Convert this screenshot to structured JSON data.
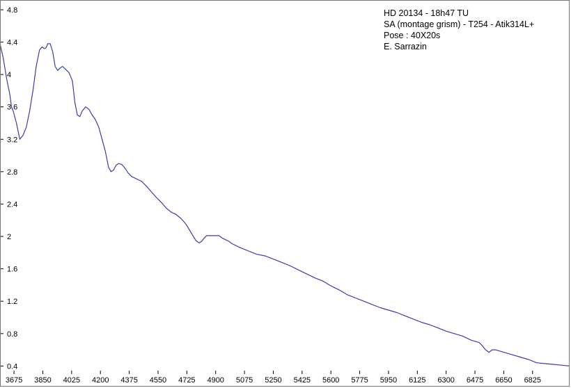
{
  "chart_data": {
    "type": "line",
    "title": "",
    "xlabel": "",
    "ylabel": "",
    "xlim": [
      3590,
      7050
    ],
    "ylim": [
      0.3,
      4.92
    ],
    "grid": false,
    "legend": "none",
    "x_ticks": [
      3675,
      3850,
      4025,
      4200,
      4375,
      4550,
      4725,
      4900,
      5075,
      5250,
      5425,
      5600,
      5775,
      5950,
      6125,
      6300,
      6475,
      6650,
      6825
    ],
    "y_ticks": [
      0.4,
      0.8,
      1.2,
      1.6,
      2,
      2.4,
      2.8,
      3.2,
      3.6,
      4,
      4.4,
      4.8
    ],
    "y_tick_labels": [
      "0.4",
      "0.8",
      "1.2",
      "1.6",
      "2",
      "2.4",
      "2.8",
      "3.2",
      "3.6",
      "4",
      "4.4",
      "4.8"
    ],
    "annotation": [
      "HD 20134 - 18h47 TU",
      "SA (montage grism) - T254 - Atik314L+",
      "Pose : 40X20s",
      "E. Sarrazin"
    ],
    "series": [
      {
        "color": "#3a3f9a",
        "x": [
          3590,
          3610,
          3630,
          3650,
          3660,
          3670,
          3690,
          3710,
          3730,
          3750,
          3770,
          3790,
          3810,
          3830,
          3845,
          3860,
          3870,
          3880,
          3895,
          3910,
          3925,
          3940,
          3955,
          3970,
          3990,
          4010,
          4030,
          4045,
          4060,
          4075,
          4090,
          4110,
          4130,
          4150,
          4170,
          4190,
          4210,
          4230,
          4250,
          4265,
          4280,
          4295,
          4310,
          4330,
          4350,
          4370,
          4390,
          4410,
          4430,
          4450,
          4480,
          4510,
          4540,
          4570,
          4600,
          4630,
          4660,
          4690,
          4720,
          4750,
          4780,
          4800,
          4815,
          4830,
          4845,
          4860,
          4880,
          4900,
          4920,
          4940,
          4960,
          4980,
          5000,
          5050,
          5100,
          5150,
          5200,
          5250,
          5300,
          5350,
          5400,
          5450,
          5500,
          5550,
          5600,
          5650,
          5700,
          5750,
          5800,
          5850,
          5900,
          5950,
          6000,
          6050,
          6100,
          6150,
          6200,
          6250,
          6300,
          6350,
          6400,
          6450,
          6500,
          6520,
          6540,
          6560,
          6580,
          6600,
          6650,
          6700,
          6750,
          6800,
          6850,
          6900,
          6950,
          7000,
          7050
        ],
        "y": [
          4.38,
          4.2,
          3.95,
          3.75,
          3.6,
          3.55,
          3.4,
          3.2,
          3.25,
          3.35,
          3.55,
          3.8,
          4.1,
          4.3,
          4.34,
          4.32,
          4.33,
          4.38,
          4.38,
          4.28,
          4.1,
          4.05,
          4.08,
          4.1,
          4.06,
          4.02,
          3.92,
          3.65,
          3.5,
          3.48,
          3.55,
          3.6,
          3.57,
          3.5,
          3.44,
          3.35,
          3.2,
          3.05,
          2.85,
          2.8,
          2.82,
          2.88,
          2.9,
          2.89,
          2.84,
          2.78,
          2.74,
          2.72,
          2.7,
          2.68,
          2.62,
          2.55,
          2.48,
          2.42,
          2.35,
          2.3,
          2.27,
          2.22,
          2.15,
          2.05,
          1.95,
          1.92,
          1.94,
          1.98,
          2.01,
          2.01,
          2.01,
          2.01,
          2.01,
          1.98,
          1.96,
          1.94,
          1.91,
          1.86,
          1.82,
          1.78,
          1.76,
          1.72,
          1.68,
          1.64,
          1.59,
          1.54,
          1.49,
          1.45,
          1.39,
          1.34,
          1.28,
          1.24,
          1.2,
          1.16,
          1.12,
          1.09,
          1.06,
          1.02,
          0.98,
          0.94,
          0.91,
          0.87,
          0.83,
          0.8,
          0.77,
          0.72,
          0.69,
          0.65,
          0.6,
          0.57,
          0.6,
          0.6,
          0.57,
          0.54,
          0.51,
          0.48,
          0.44,
          0.43,
          0.42,
          0.41,
          0.4
        ]
      }
    ]
  }
}
